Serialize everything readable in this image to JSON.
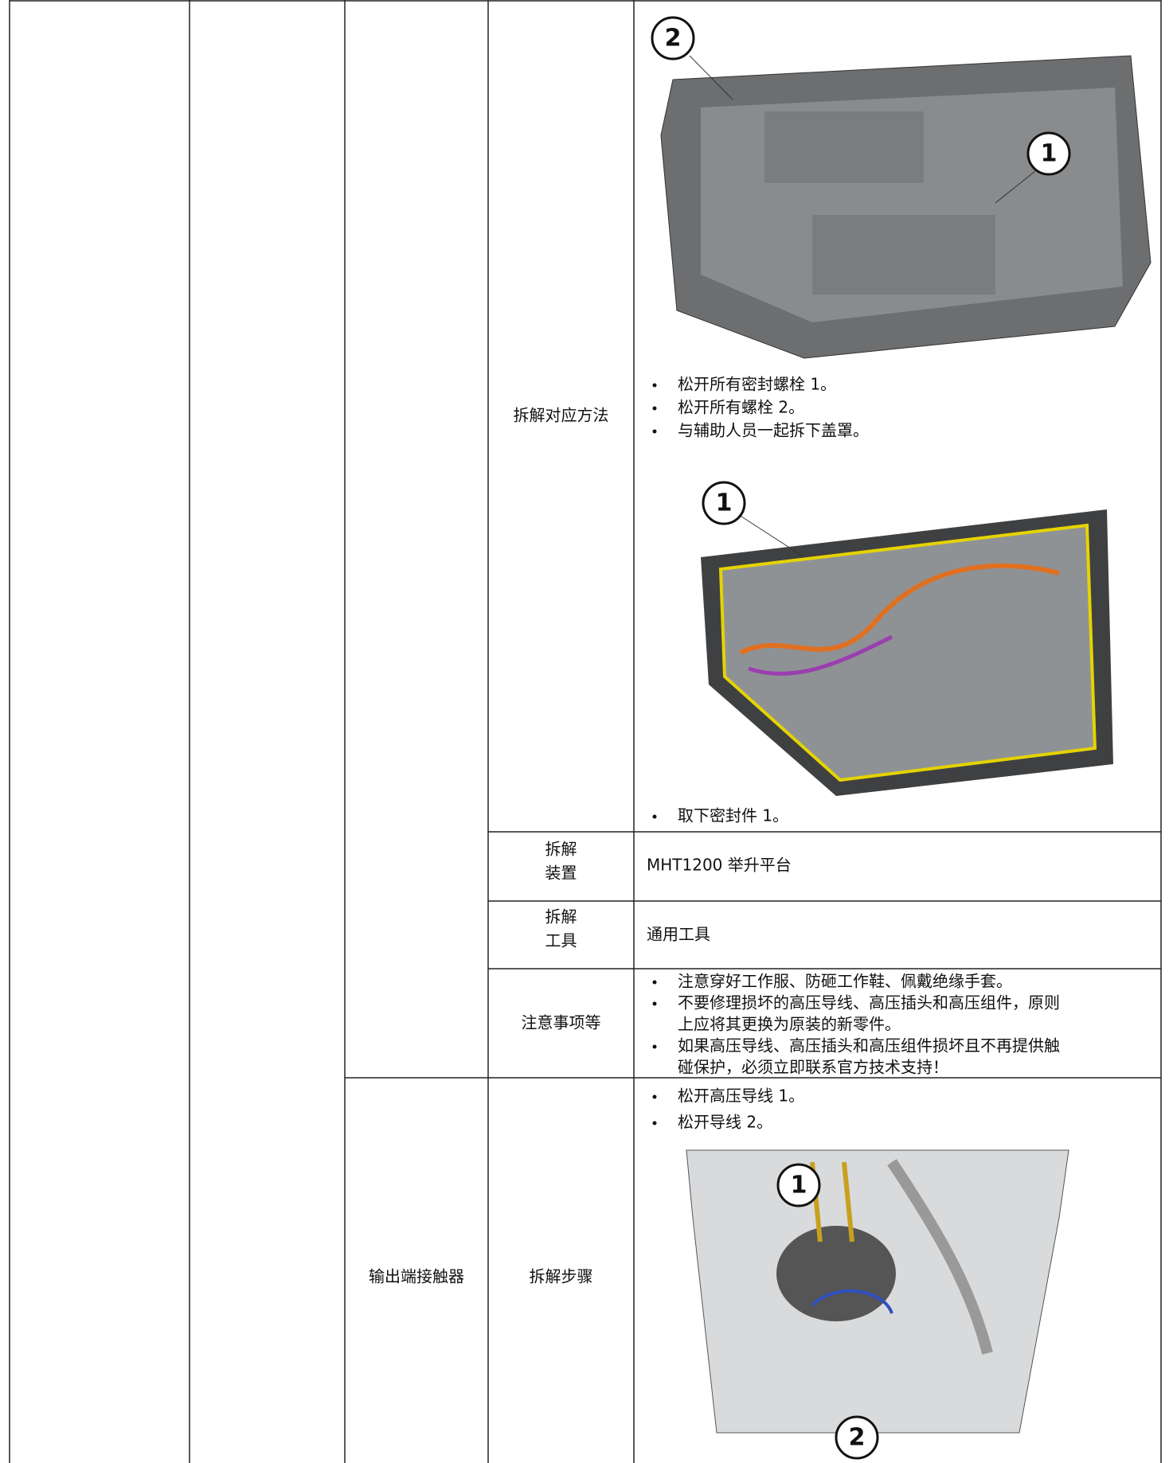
{
  "disassembly_method": {
    "label": "拆解对应方法",
    "steps_before": [
      "松开所有密封螺栓 1。",
      "松开所有螺栓 2。",
      "与辅助人员一起拆下盖罩。"
    ],
    "steps_after": [
      "取下密封件 1。"
    ],
    "figure_1_callouts": [
      "2",
      "1"
    ],
    "figure_2_callouts": [
      "1"
    ]
  },
  "device": {
    "label": [
      "拆解",
      "装置"
    ],
    "value": "MHT1200 举升平台"
  },
  "tools": {
    "label": [
      "拆解",
      "工具"
    ],
    "value": "通用工具"
  },
  "notes": {
    "label": "注意事项等",
    "items": [
      [
        "注意穿好工作服、防砸工作鞋、佩戴绝缘手套。"
      ],
      [
        "不要修理损坏的高压导线、高压插头和高压组件，原则",
        "上应将其更换为原装的新零件。"
      ],
      [
        "如果高压导线、高压插头和高压组件损坏且不再提供触",
        "碰保护，必须立即联系官方技术支持！"
      ]
    ]
  },
  "output_contactor": {
    "component": "输出端接触器",
    "label": "拆解步骤",
    "steps": [
      "松开高压导线 1。",
      "松开导线 2。"
    ],
    "figure_callouts": [
      "1",
      "2"
    ]
  }
}
